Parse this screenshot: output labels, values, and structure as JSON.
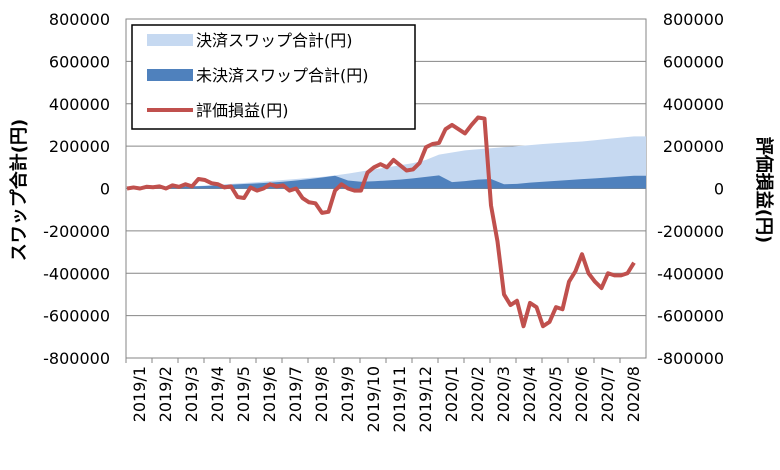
{
  "chart_data": {
    "type": "area",
    "title": "",
    "y_left_label": "スワップ合計(円)",
    "y_right_label": "評価損益(円)",
    "ylim": [
      -800000,
      800000
    ],
    "y_ticks": [
      800000,
      600000,
      400000,
      200000,
      0,
      -200000,
      -400000,
      -600000,
      -800000
    ],
    "y_tick_labels": [
      "800000",
      "600000",
      "400000",
      "200000",
      "0",
      "-200000",
      "-400000",
      "-600000",
      "-800000"
    ],
    "x_categories": [
      "2019/1",
      "2019/2",
      "2019/3",
      "2019/4",
      "2019/5",
      "2019/6",
      "2019/7",
      "2019/8",
      "2019/9",
      "2019/10",
      "2019/11",
      "2019/12",
      "2020/1",
      "2020/2",
      "2020/3",
      "2020/4",
      "2020/5",
      "2020/6",
      "2020/7",
      "2020/8"
    ],
    "legend_position": "top-left",
    "gridlines": true,
    "series": [
      {
        "name": "決済スワップ合計(円)",
        "type": "area",
        "color": "#c6d9f1",
        "axis": "left",
        "x": [
          "2019/1",
          "2019/1.5",
          "2019/2",
          "2019/2.5",
          "2019/3",
          "2019/3.5",
          "2019/4",
          "2019/4.5",
          "2019/5",
          "2019/5.5",
          "2019/6",
          "2019/6.5",
          "2019/7",
          "2019/7.5",
          "2019/8",
          "2019/8.5",
          "2019/9",
          "2019/9.5",
          "2019/10",
          "2019/10.5",
          "2019/11",
          "2019/11.5",
          "2019/12",
          "2019/12.5",
          "2020/1",
          "2020/1.5",
          "2020/2",
          "2020/2.5",
          "2020/3",
          "2020/3.5",
          "2020/4",
          "2020/4.5",
          "2020/5",
          "2020/5.5",
          "2020/6",
          "2020/6.5",
          "2020/7",
          "2020/7.5",
          "2020/8",
          "2020/8.5"
        ],
        "values": [
          0,
          2000,
          4000,
          6000,
          8000,
          10000,
          14000,
          18000,
          22000,
          26000,
          30000,
          35000,
          40000,
          45000,
          50000,
          55000,
          62000,
          70000,
          80000,
          90000,
          100000,
          110000,
          120000,
          135000,
          160000,
          170000,
          180000,
          185000,
          190000,
          195000,
          200000,
          205000,
          210000,
          214000,
          218000,
          222000,
          228000,
          234000,
          240000,
          246000
        ]
      },
      {
        "name": "未決済スワップ合計(円)",
        "type": "area",
        "color": "#4f81bd",
        "axis": "left",
        "x": [
          "2019/1",
          "2019/1.5",
          "2019/2",
          "2019/2.5",
          "2019/3",
          "2019/3.5",
          "2019/4",
          "2019/4.5",
          "2019/5",
          "2019/5.5",
          "2019/6",
          "2019/6.5",
          "2019/7",
          "2019/7.5",
          "2019/8",
          "2019/8.5",
          "2019/9",
          "2019/9.5",
          "2019/10",
          "2019/10.5",
          "2019/11",
          "2019/11.5",
          "2019/12",
          "2019/12.5",
          "2020/1",
          "2020/1.5",
          "2020/2",
          "2020/2.5",
          "2020/3",
          "2020/3.5",
          "2020/4",
          "2020/4.5",
          "2020/5",
          "2020/5.5",
          "2020/6",
          "2020/6.5",
          "2020/7",
          "2020/7.5",
          "2020/8",
          "2020/8.5"
        ],
        "values": [
          0,
          2000,
          4000,
          6000,
          8000,
          10000,
          12000,
          15000,
          18000,
          21000,
          24000,
          28000,
          32000,
          38000,
          44000,
          52000,
          60000,
          38000,
          32000,
          34000,
          38000,
          42000,
          48000,
          55000,
          62000,
          30000,
          35000,
          42000,
          45000,
          20000,
          22000,
          28000,
          32000,
          36000,
          40000,
          44000,
          48000,
          52000,
          56000,
          60000
        ]
      },
      {
        "name": "評価損益(円)",
        "type": "line",
        "color": "#c0504d",
        "axis": "right",
        "x": [
          "2019/1",
          "2019/1.25",
          "2019/1.5",
          "2019/1.75",
          "2019/2",
          "2019/2.25",
          "2019/2.5",
          "2019/2.75",
          "2019/3",
          "2019/3.25",
          "2019/3.5",
          "2019/3.75",
          "2019/4",
          "2019/4.25",
          "2019/4.5",
          "2019/4.75",
          "2019/5",
          "2019/5.25",
          "2019/5.5",
          "2019/5.75",
          "2019/6",
          "2019/6.25",
          "2019/6.5",
          "2019/6.75",
          "2019/7",
          "2019/7.25",
          "2019/7.5",
          "2019/7.75",
          "2019/8",
          "2019/8.25",
          "2019/8.5",
          "2019/8.75",
          "2019/9",
          "2019/9.25",
          "2019/9.5",
          "2019/9.75",
          "2019/10",
          "2019/10.25",
          "2019/10.5",
          "2019/10.75",
          "2019/11",
          "2019/11.25",
          "2019/11.5",
          "2019/11.75",
          "2019/12",
          "2019/12.25",
          "2019/12.5",
          "2019/12.75",
          "2020/1",
          "2020/1.25",
          "2020/1.5",
          "2020/1.75",
          "2020/2",
          "2020/2.25",
          "2020/2.5",
          "2020/2.75",
          "2020/3",
          "2020/3.25",
          "2020/3.5",
          "2020/3.75",
          "2020/4",
          "2020/4.25",
          "2020/4.5",
          "2020/4.75",
          "2020/5",
          "2020/5.25",
          "2020/5.5",
          "2020/5.75",
          "2020/6",
          "2020/6.25",
          "2020/6.5",
          "2020/6.75",
          "2020/7",
          "2020/7.25",
          "2020/7.5",
          "2020/7.75",
          "2020/8",
          "2020/8.25",
          "2020/8.5"
        ],
        "values": [
          0,
          5000,
          0,
          8000,
          6000,
          10000,
          0,
          15000,
          8000,
          20000,
          10000,
          45000,
          40000,
          25000,
          20000,
          5000,
          10000,
          -40000,
          -45000,
          5000,
          -10000,
          0,
          20000,
          10000,
          15000,
          -10000,
          0,
          -45000,
          -65000,
          -70000,
          -115000,
          -110000,
          -10000,
          20000,
          0,
          -10000,
          -10000,
          75000,
          100000,
          115000,
          100000,
          135000,
          110000,
          85000,
          90000,
          120000,
          195000,
          210000,
          215000,
          280000,
          300000,
          280000,
          260000,
          300000,
          335000,
          330000,
          -80000,
          -250000,
          -500000,
          -550000,
          -530000,
          -650000,
          -540000,
          -560000,
          -650000,
          -630000,
          -560000,
          -570000,
          -440000,
          -390000,
          -310000,
          -400000,
          -440000,
          -470000,
          -400000,
          -410000,
          -410000,
          -400000,
          -350000
        ]
      }
    ]
  }
}
